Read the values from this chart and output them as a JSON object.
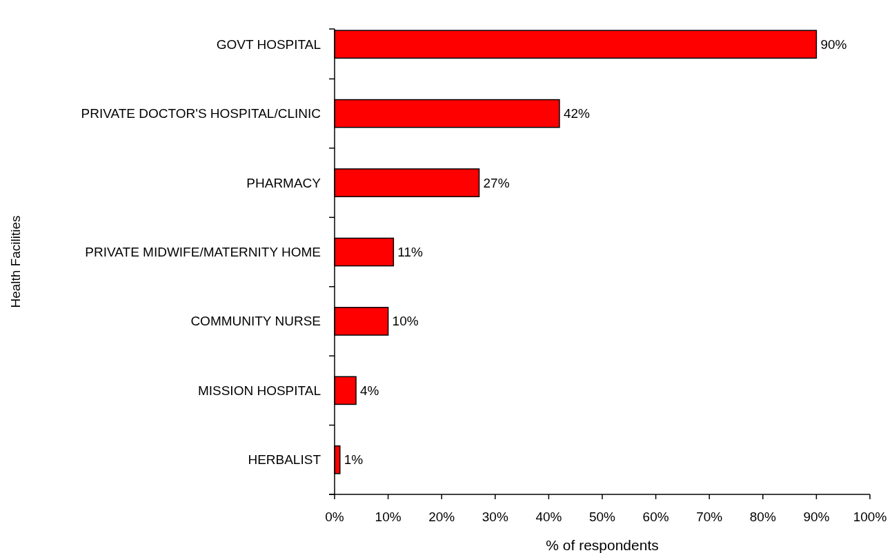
{
  "chart_data": {
    "type": "bar",
    "orientation": "horizontal",
    "categories": [
      "GOVT HOSPITAL",
      "PRIVATE DOCTOR'S HOSPITAL/CLINIC",
      "PHARMACY",
      "PRIVATE MIDWIFE/MATERNITY HOME",
      "COMMUNITY NURSE",
      "MISSION HOSPITAL",
      "HERBALIST"
    ],
    "values": [
      90,
      42,
      27,
      11,
      10,
      4,
      1
    ],
    "value_labels": [
      "90%",
      "42%",
      "27%",
      "11%",
      "10%",
      "4%",
      "1%"
    ],
    "color": "#ff0000",
    "xlabel": "% of respondents",
    "ylabel": "Health Facilities",
    "xlim": [
      0,
      100
    ],
    "xticks": [
      {
        "value": 0,
        "label": "0%"
      },
      {
        "value": 10,
        "label": "10%"
      },
      {
        "value": 20,
        "label": "20%"
      },
      {
        "value": 30,
        "label": "30%"
      },
      {
        "value": 40,
        "label": "40%"
      },
      {
        "value": 50,
        "label": "50%"
      },
      {
        "value": 60,
        "label": "60%"
      },
      {
        "value": 70,
        "label": "70%"
      },
      {
        "value": 80,
        "label": "80%"
      },
      {
        "value": 90,
        "label": "90%"
      },
      {
        "value": 100,
        "label": "100%"
      }
    ]
  }
}
